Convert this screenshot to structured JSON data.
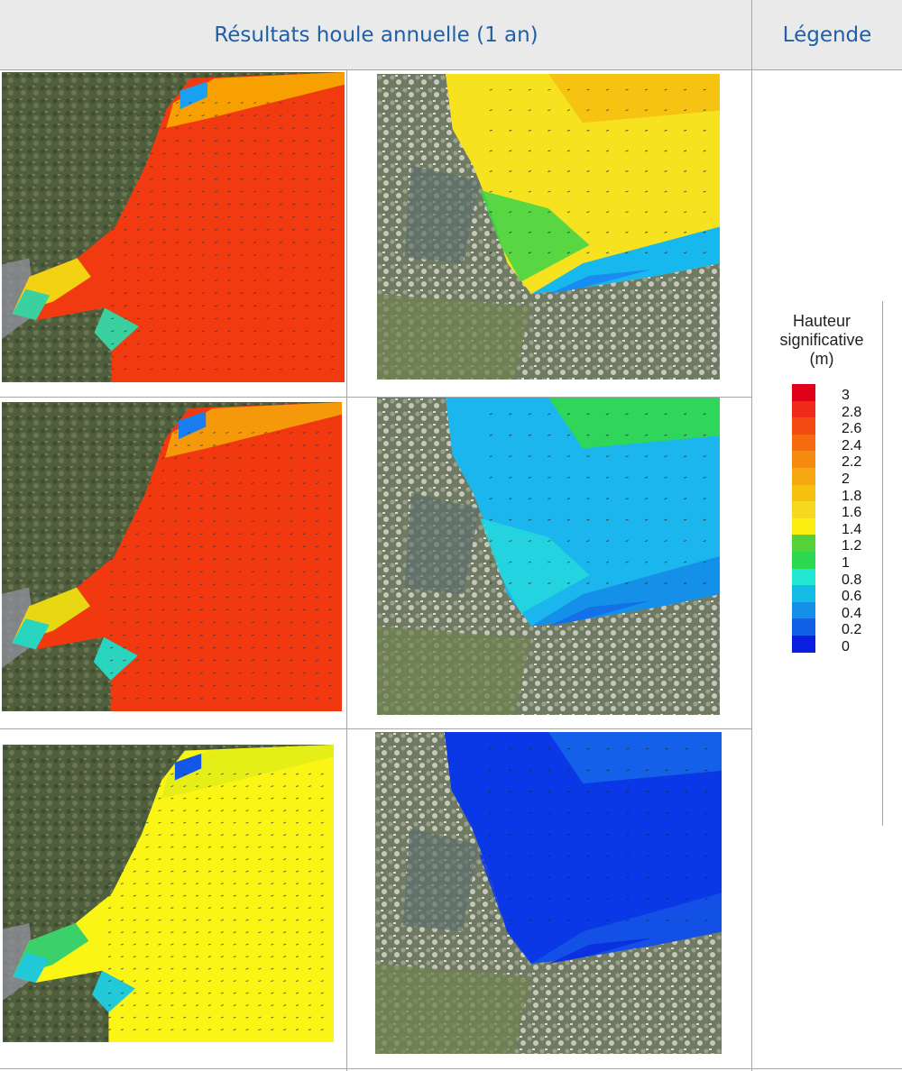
{
  "header": {
    "results_title": "Résultats houle annuelle (1 an)",
    "legend_title": "Légende"
  },
  "legend": {
    "title_lines": [
      "Hauteur",
      "significative",
      "(m)"
    ],
    "labels": [
      "3",
      "2.8",
      "2.6",
      "2.4",
      "2.2",
      "2",
      "1.8",
      "1.6",
      "1.4",
      "1.2",
      "1",
      "0.8",
      "0.6",
      "0.4",
      "0.2",
      "0"
    ],
    "colors": [
      "#e0001a",
      "#ef2a18",
      "#f44a14",
      "#f66a10",
      "#f58a10",
      "#f7a810",
      "#f5c010",
      "#f7d820",
      "#fbf012",
      "#55d23a",
      "#2bd84f",
      "#22e8d4",
      "#15bde6",
      "#1590e8",
      "#1260e6",
      "#0a1ee0"
    ]
  },
  "rows": [
    {
      "wide_map": {
        "sea_main": "#f23a10",
        "sea_near": "#f7a000",
        "coast_mix": [
          "#f2d212",
          "#3ad0a0",
          "#1aa0f0"
        ]
      },
      "zoom_map": {
        "sea_main": "#f6e21e",
        "sea_top": "#f7c312",
        "sea_near": "#3dd54a",
        "coast_mix": [
          "#17b8ee",
          "#1a8cf0"
        ]
      }
    },
    {
      "wide_map": {
        "sea_main": "#f2380e",
        "sea_near": "#f5980a",
        "coast_mix": [
          "#e8d814",
          "#2ad5c0",
          "#1a7ef0"
        ]
      },
      "zoom_map": {
        "sea_main": "#1bb6ee",
        "sea_top": "#2fd659",
        "sea_near": "#24d8dc",
        "coast_mix": [
          "#1590e8",
          "#1470e6"
        ]
      }
    },
    {
      "wide_map": {
        "sea_main": "#fbf515",
        "sea_near": "#e6ee18",
        "coast_mix": [
          "#3ad06a",
          "#22c9d8",
          "#1457e6"
        ]
      },
      "zoom_map": {
        "sea_main": "#0b38e6",
        "sea_top": "#1560e8",
        "sea_near": "#0b38e6",
        "coast_mix": [
          "#1250e6",
          "#0a30e0"
        ]
      }
    }
  ]
}
